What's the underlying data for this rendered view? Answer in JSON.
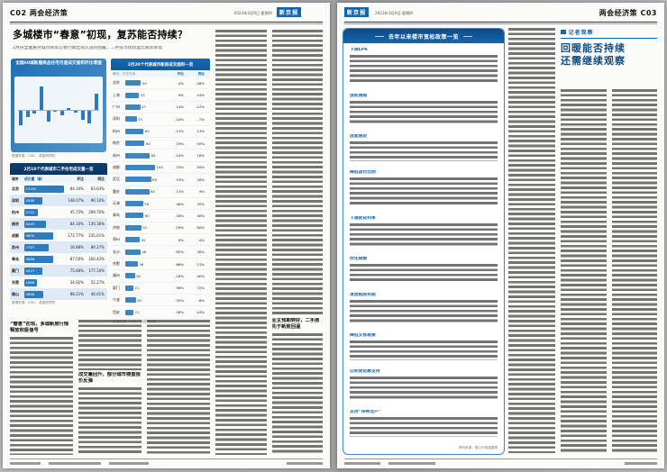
{
  "header_left": {
    "page_code": "C02",
    "section": "两会经济策",
    "date": "2023年3月9日 星期四",
    "masthead": "新京报"
  },
  "header_right": {
    "page_code": "C03",
    "section": "两会经济策",
    "date": "2023年3月9日 星期四",
    "masthead": "新京报"
  },
  "article": {
    "headline": "多城楼市“春意”初现，复苏能否持续？",
    "subtitle": "2月份全国重点城市新房交易行情出现久违的回暖，二手房市场热度比新房早现",
    "subhead1": "“春意”初现，多城新房行情释放积极信号",
    "subhead2": "成交量回升，部分城市楼盘报价反弹",
    "subhead3": "业主预期转好，二手房先于新房回温"
  },
  "chart_data": [
    {
      "type": "bar",
      "title": "全国60城新建商品住宅月度成交面积环比增速",
      "x": [
        "2022.3",
        "2022.4",
        "2022.5",
        "2022.6",
        "2022.7",
        "2022.8",
        "2022.9",
        "2022.10",
        "2022.11",
        "2022.12",
        "2023.1",
        "2023.2"
      ],
      "values": [
        -40,
        -18,
        -9,
        62,
        -31,
        -5,
        -15,
        5,
        -8,
        -26,
        -35,
        42
      ],
      "ylabel": "环比增速（%）",
      "source": "数据来源：CRIC、易居研究院"
    },
    {
      "type": "bar",
      "title": "2月20个代表城市新房成交面积一览",
      "unit": "单位：万平方米",
      "columns": [
        "城市",
        "成交面积",
        "环比",
        "同比"
      ],
      "rows": [
        [
          "北京",
          50,
          "-4%",
          "-36%"
        ],
        [
          "上海",
          43,
          "9%",
          "43%"
        ],
        [
          "广州",
          47,
          "14%",
          "-12%"
        ],
        [
          "深圳",
          33,
          "-10%",
          "-7%"
        ],
        [
          "杭州",
          60,
          "-13%",
          "13%"
        ],
        [
          "南京",
          64,
          "19%",
          "55%"
        ],
        [
          "苏州",
          84,
          "-10%",
          "18%"
        ],
        [
          "成都",
          104,
          "25%",
          "50%"
        ],
        [
          "武汉",
          89,
          "53%",
          "28%"
        ],
        [
          "重庆",
          82,
          "13%",
          "9%"
        ],
        [
          "天津",
          58,
          "46%",
          "35%"
        ],
        [
          "青岛",
          60,
          "16%",
          "48%"
        ],
        [
          "济南",
          52,
          "29%",
          "80%"
        ],
        [
          "郑州",
          45,
          "8%",
          "-4%"
        ],
        [
          "长沙",
          48,
          "85%",
          "30%"
        ],
        [
          "合肥",
          38,
          "66%",
          "21%"
        ],
        [
          "福州",
          26,
          "-18%",
          "40%"
        ],
        [
          "厦门",
          21,
          "98%",
          "72%"
        ],
        [
          "宁波",
          30,
          "55%",
          "-8%"
        ],
        [
          "西安",
          21,
          "26%",
          "44%"
        ]
      ],
      "source": "数据来源：CRIC、易居研究院"
    },
    {
      "type": "table",
      "title": "2月10个代表城市二手住宅成交量一览",
      "columns": [
        "城市",
        "成交量（套）",
        "环比",
        "同比"
      ],
      "rows": [
        [
          "北京",
          15291,
          "84.34%",
          "83.63%"
        ],
        [
          "深圳",
          4486,
          "148.07%",
          "96.10%"
        ],
        [
          "杭州",
          2152,
          "45.73%",
          "299.70%"
        ],
        [
          "南京",
          6449,
          "84.10%",
          "130.36%"
        ],
        [
          "成都",
          9800,
          "172.77%",
          "235.01%"
        ],
        [
          "苏州",
          7787,
          "16.88%",
          "89.27%"
        ],
        [
          "青岛",
          9888,
          "87.50%",
          "160.43%"
        ],
        [
          "厦门",
          4227,
          "75.68%",
          "177.10%"
        ],
        [
          "东莞",
          1668,
          "34.92%",
          "52.27%"
        ],
        [
          "佛山",
          4688,
          "88.21%",
          "46.01%"
        ]
      ],
      "source": "数据来源：CRIC、易居研究院"
    }
  ],
  "policy": {
    "title": "去年以来楼市宽松政策一览",
    "items": [
      {
        "label": "下调LPR",
        "lines": 6
      },
      {
        "label": "放松限购",
        "lines": 5
      },
      {
        "label": "放宽限贷",
        "lines": 4
      },
      {
        "label": "降低首付比例",
        "lines": 6
      },
      {
        "label": "下调房贷利率",
        "lines": 5
      },
      {
        "label": "优化限售",
        "lines": 4
      },
      {
        "label": "发放购房补贴",
        "lines": 5
      },
      {
        "label": "降低交易税费",
        "lines": 4
      },
      {
        "label": "公积金贷款支持",
        "lines": 5
      },
      {
        "label": "支持“带押过户”",
        "lines": 4
      }
    ],
    "source": "资料来源：据公开报道整理"
  },
  "observer": {
    "badge": "记者观察",
    "title_line1": "回暖能否持续",
    "title_line2": "还需继续观察"
  },
  "colors": {
    "brand_blue": "#1467ad",
    "navy": "#0b3c70",
    "bar_blue": "#2e7cc0",
    "row_alt": "#ddeaf6",
    "observer_title": "#124c86"
  }
}
